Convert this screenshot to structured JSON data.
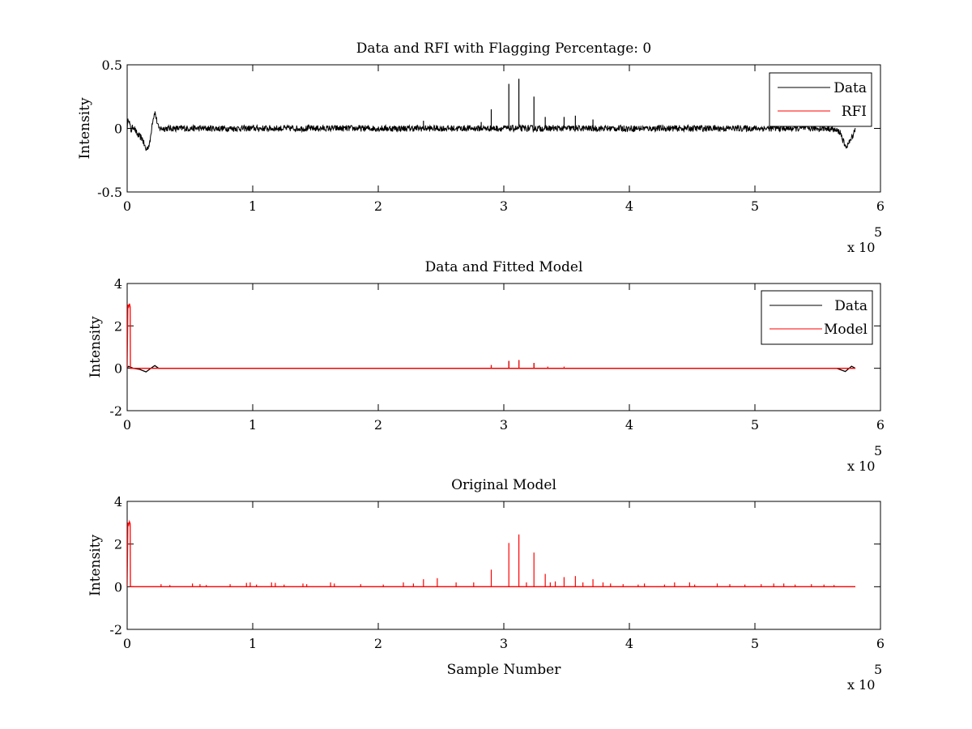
{
  "chart_data": [
    {
      "type": "line",
      "title": "Data and RFI with Flagging Percentage: 0",
      "ylabel": "Intensity",
      "xlabel": "",
      "xlim": [
        0,
        600000
      ],
      "ylim": [
        -0.5,
        0.5
      ],
      "xticks": [
        0,
        1,
        2,
        3,
        4,
        5,
        6
      ],
      "yticks": [
        "-0.5",
        "0",
        "0.5"
      ],
      "x_exponent_label": "x 10",
      "x_exponent": "5",
      "legend": {
        "placement": "top-right",
        "entries": [
          "Data",
          "RFI"
        ]
      },
      "series": [
        {
          "name": "Data",
          "color": "#000000",
          "noise_amplitude": 0.025,
          "x": [
            0,
            1000,
            3000,
            5000,
            8000,
            12000,
            15000,
            18000,
            20000,
            22000,
            25000,
            100000,
            200000,
            300000,
            400000,
            500000,
            560000,
            568000,
            572000,
            576000,
            580000
          ],
          "y": [
            0.0,
            0.09,
            -0.02,
            0.02,
            -0.05,
            -0.08,
            -0.17,
            -0.12,
            0.05,
            0.13,
            0.0,
            0.0,
            0.0,
            0.0,
            0.0,
            0.0,
            0.0,
            -0.03,
            -0.15,
            -0.1,
            0.0
          ],
          "spikes_x": [
            236000,
            282000,
            290000,
            304000,
            312000,
            324000,
            333000,
            348000,
            357000,
            371000
          ],
          "spikes_y": [
            0.06,
            0.05,
            0.15,
            0.35,
            0.39,
            0.25,
            0.09,
            0.09,
            0.1,
            0.07
          ]
        },
        {
          "name": "RFI",
          "color": "#ff0000",
          "x": [],
          "y": []
        }
      ]
    },
    {
      "type": "line",
      "title": "Data and Fitted Model",
      "ylabel": "Intensity",
      "xlabel": "",
      "xlim": [
        0,
        600000
      ],
      "ylim": [
        -2,
        4
      ],
      "xticks": [
        0,
        1,
        2,
        3,
        4,
        5,
        6
      ],
      "yticks": [
        "-2",
        "0",
        "2",
        "4"
      ],
      "x_exponent_label": "x 10",
      "x_exponent": "5",
      "legend": {
        "placement": "top-right",
        "entries": [
          "Data",
          "Model"
        ]
      },
      "series": [
        {
          "name": "Data",
          "color": "#000000",
          "x": [
            0,
            1000,
            5000,
            10000,
            15000,
            20000,
            22000,
            25000,
            100000,
            300000,
            500000,
            565000,
            572000,
            577000,
            580000
          ],
          "y": [
            0.0,
            0.09,
            0.0,
            -0.05,
            -0.17,
            0.05,
            0.13,
            0.0,
            0.0,
            0.0,
            0.0,
            0.0,
            -0.15,
            0.1,
            0.0
          ],
          "spikes_x": [
            290000,
            304000,
            312000,
            324000
          ],
          "spikes_y": [
            0.15,
            0.35,
            0.39,
            0.25
          ]
        },
        {
          "name": "Model",
          "color": "#ff0000",
          "x": [
            0,
            600,
            1200,
            1800,
            2400,
            2600,
            20000,
            580000
          ],
          "y": [
            0.0,
            3.0,
            2.9,
            3.05,
            2.9,
            0.0,
            0.0,
            0.0
          ],
          "spikes_x": [
            290000,
            304000,
            312000,
            324000,
            335000,
            348000
          ],
          "spikes_y": [
            0.15,
            0.35,
            0.39,
            0.25,
            0.08,
            0.08
          ]
        }
      ]
    },
    {
      "type": "line",
      "title": "Original Model",
      "ylabel": "Intensity",
      "xlabel": "Sample Number",
      "xlim": [
        0,
        600000
      ],
      "ylim": [
        -2,
        4
      ],
      "xticks": [
        0,
        1,
        2,
        3,
        4,
        5,
        6
      ],
      "yticks": [
        "-2",
        "0",
        "2",
        "4"
      ],
      "x_exponent_label": "x 10",
      "x_exponent": "5",
      "series": [
        {
          "name": "Original",
          "color": "#ff0000",
          "x": [
            0,
            600,
            1200,
            1800,
            2400,
            2600,
            580000
          ],
          "y": [
            0.0,
            3.0,
            2.9,
            3.05,
            2.95,
            0.0,
            0.0
          ],
          "spikes_x": [
            27000,
            34000,
            52000,
            58000,
            63000,
            82000,
            95000,
            98000,
            103000,
            115000,
            118000,
            125000,
            140000,
            143000,
            162000,
            165000,
            186000,
            204000,
            220000,
            228000,
            236000,
            247000,
            262000,
            276000,
            290000,
            304000,
            312000,
            318000,
            324000,
            333000,
            337000,
            341000,
            348000,
            357000,
            363000,
            371000,
            379000,
            385000,
            395000,
            407000,
            412000,
            428000,
            436000,
            448000,
            452000,
            470000,
            480000,
            492000,
            505000,
            515000,
            523000,
            532000,
            545000,
            555000,
            563000
          ],
          "spikes_y": [
            0.12,
            0.08,
            0.15,
            0.12,
            0.08,
            0.12,
            0.18,
            0.2,
            0.1,
            0.2,
            0.18,
            0.1,
            0.15,
            0.12,
            0.2,
            0.15,
            0.12,
            0.1,
            0.2,
            0.15,
            0.35,
            0.4,
            0.2,
            0.2,
            0.8,
            2.05,
            2.45,
            0.2,
            1.6,
            0.6,
            0.2,
            0.25,
            0.45,
            0.5,
            0.2,
            0.35,
            0.2,
            0.15,
            0.12,
            0.1,
            0.15,
            0.1,
            0.2,
            0.2,
            0.1,
            0.15,
            0.12,
            0.1,
            0.12,
            0.15,
            0.15,
            0.1,
            0.12,
            0.1,
            0.08
          ]
        }
      ]
    }
  ]
}
